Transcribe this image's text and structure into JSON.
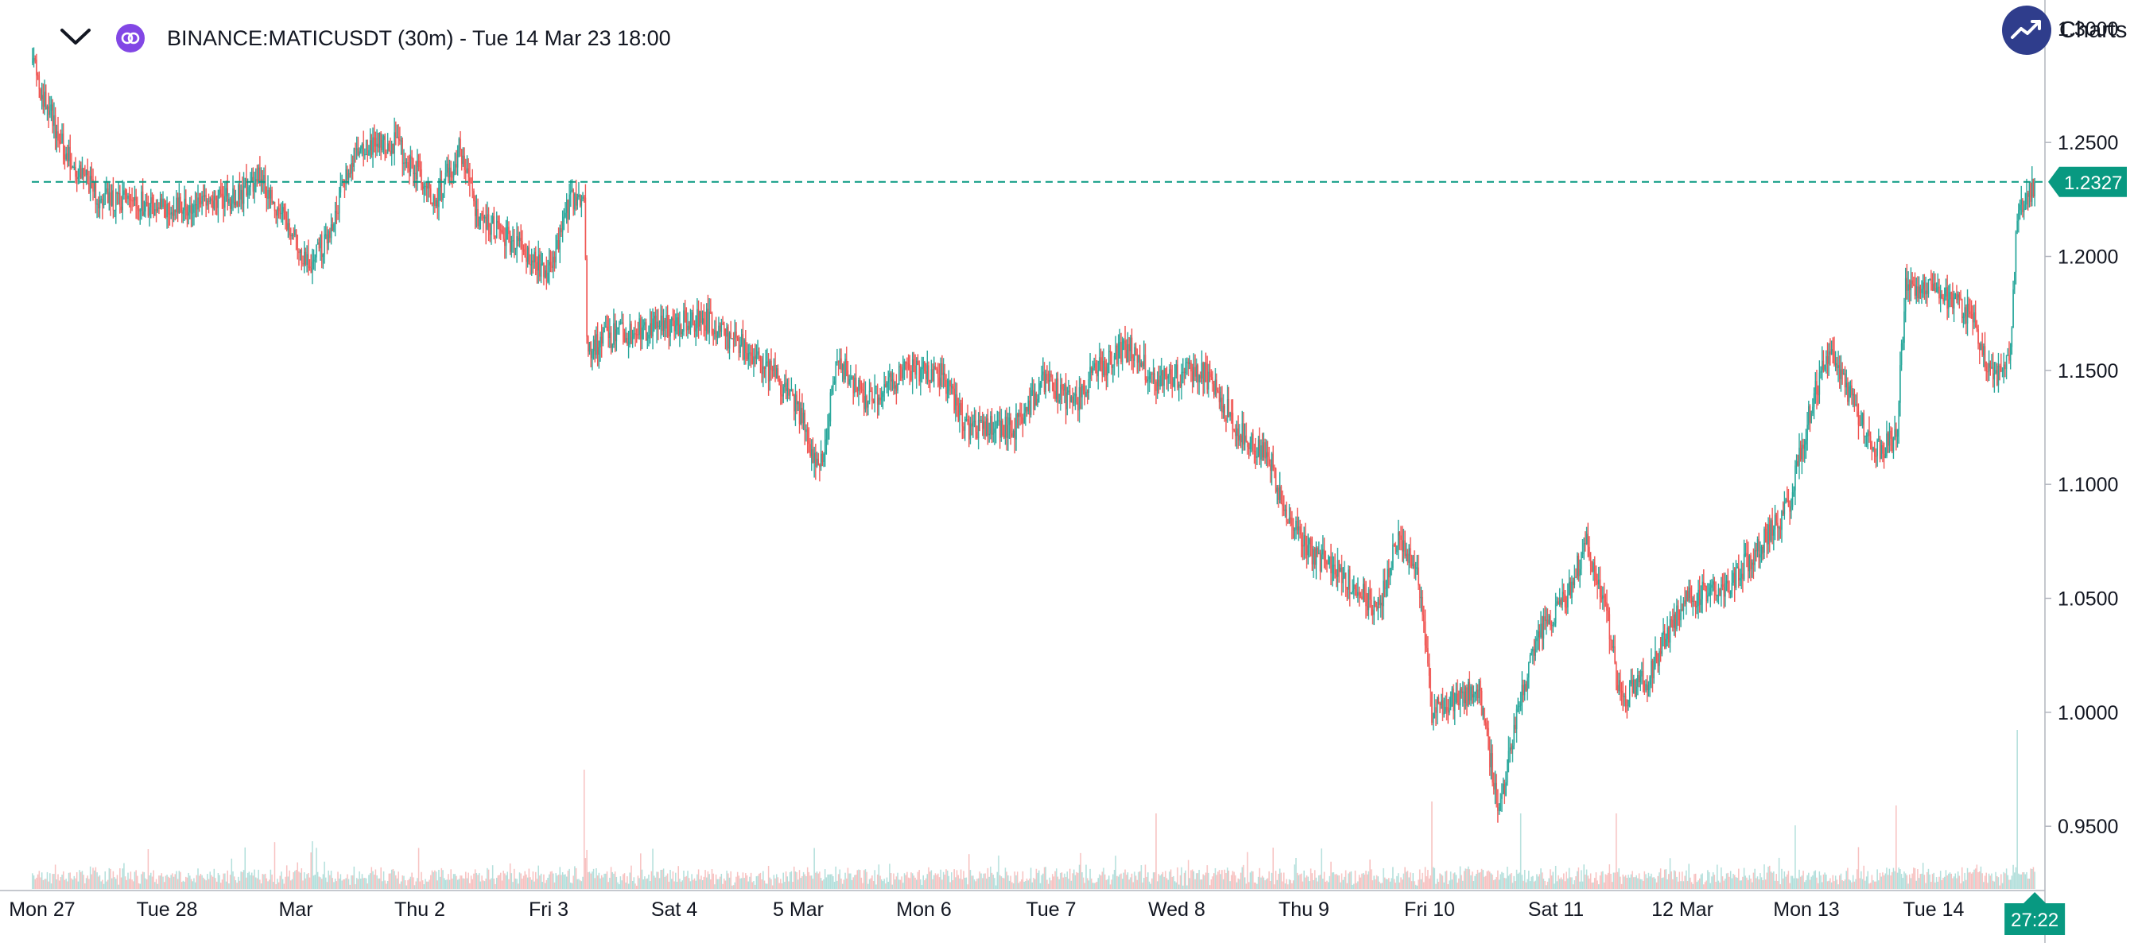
{
  "header": {
    "title": "BINANCE:MATICUSDT (30m) - Tue 14 Mar 23 18:00",
    "brand_text": "Charts p",
    "collapse_icon": "chevron-down-icon",
    "symbol_icon": "polygon-logo-icon",
    "brand_icon": "trend-up-icon"
  },
  "colors": {
    "up": "#26a69a",
    "down": "#ef5350",
    "up_volume": "#b2dfdb",
    "down_volume": "#f7c1c0",
    "price_line": "#089981",
    "axis_text": "#131722",
    "axis_line": "#b2b5be",
    "symbol_logo": "#8247e5",
    "brand_badge": "#2f3d8c"
  },
  "chart_data": {
    "type": "candlestick",
    "interval": "30m",
    "x_labels": [
      "Mon 27",
      "Tue 28",
      "Mar",
      "Thu 2",
      "Fri 3",
      "Sat 4",
      "5 Mar",
      "Mon 6",
      "Tue 7",
      "Wed 8",
      "Thu 9",
      "Fri 10",
      "Sat 11",
      "12 Mar",
      "Mon 13",
      "Tue 14"
    ],
    "y_ticks": [
      "1.3000",
      "1.2500",
      "1.2000",
      "1.1500",
      "1.1000",
      "1.0500",
      "1.0000",
      "0.9500"
    ],
    "y_tick_values": [
      1.3,
      1.25,
      1.2,
      1.15,
      1.1,
      1.05,
      1.0,
      0.95
    ],
    "ylim": [
      0.9225,
      1.3125
    ],
    "last_price": 1.2327,
    "last_price_label": "1.2327",
    "countdown_label": "27:22",
    "price_path": [
      [
        0,
        1.285
      ],
      [
        8,
        1.27
      ],
      [
        25,
        1.245
      ],
      [
        50,
        1.225
      ],
      [
        100,
        1.222
      ],
      [
        150,
        1.225
      ],
      [
        170,
        1.235
      ],
      [
        205,
        1.195
      ],
      [
        220,
        1.21
      ],
      [
        240,
        1.248
      ],
      [
        270,
        1.25
      ],
      [
        300,
        1.225
      ],
      [
        318,
        1.248
      ],
      [
        330,
        1.218
      ],
      [
        360,
        1.205
      ],
      [
        383,
        1.193
      ],
      [
        400,
        1.225
      ],
      [
        410,
        1.228
      ],
      [
        412,
        1.16
      ],
      [
        430,
        1.165
      ],
      [
        470,
        1.17
      ],
      [
        500,
        1.172
      ],
      [
        540,
        1.155
      ],
      [
        568,
        1.135
      ],
      [
        585,
        1.105
      ],
      [
        598,
        1.155
      ],
      [
        620,
        1.135
      ],
      [
        650,
        1.15
      ],
      [
        675,
        1.148
      ],
      [
        695,
        1.125
      ],
      [
        730,
        1.125
      ],
      [
        752,
        1.145
      ],
      [
        775,
        1.135
      ],
      [
        790,
        1.15
      ],
      [
        815,
        1.16
      ],
      [
        835,
        1.145
      ],
      [
        855,
        1.148
      ],
      [
        870,
        1.15
      ],
      [
        895,
        1.125
      ],
      [
        920,
        1.11
      ],
      [
        930,
        1.09
      ],
      [
        950,
        1.07
      ],
      [
        975,
        1.06
      ],
      [
        1000,
        1.045
      ],
      [
        1015,
        1.08
      ],
      [
        1030,
        1.06
      ],
      [
        1040,
        1.0
      ],
      [
        1055,
        1.005
      ],
      [
        1075,
        1.01
      ],
      [
        1090,
        0.955
      ],
      [
        1105,
        1.005
      ],
      [
        1120,
        1.035
      ],
      [
        1140,
        1.05
      ],
      [
        1155,
        1.075
      ],
      [
        1170,
        1.045
      ],
      [
        1180,
        1.005
      ],
      [
        1200,
        1.015
      ],
      [
        1215,
        1.035
      ],
      [
        1230,
        1.05
      ],
      [
        1260,
        1.055
      ],
      [
        1280,
        1.07
      ],
      [
        1305,
        1.09
      ],
      [
        1320,
        1.13
      ],
      [
        1335,
        1.16
      ],
      [
        1350,
        1.14
      ],
      [
        1370,
        1.115
      ],
      [
        1385,
        1.12
      ],
      [
        1392,
        1.185
      ],
      [
        1410,
        1.185
      ],
      [
        1440,
        1.175
      ],
      [
        1458,
        1.145
      ],
      [
        1470,
        1.16
      ],
      [
        1475,
        1.22
      ],
      [
        1488,
        1.232
      ]
    ]
  }
}
